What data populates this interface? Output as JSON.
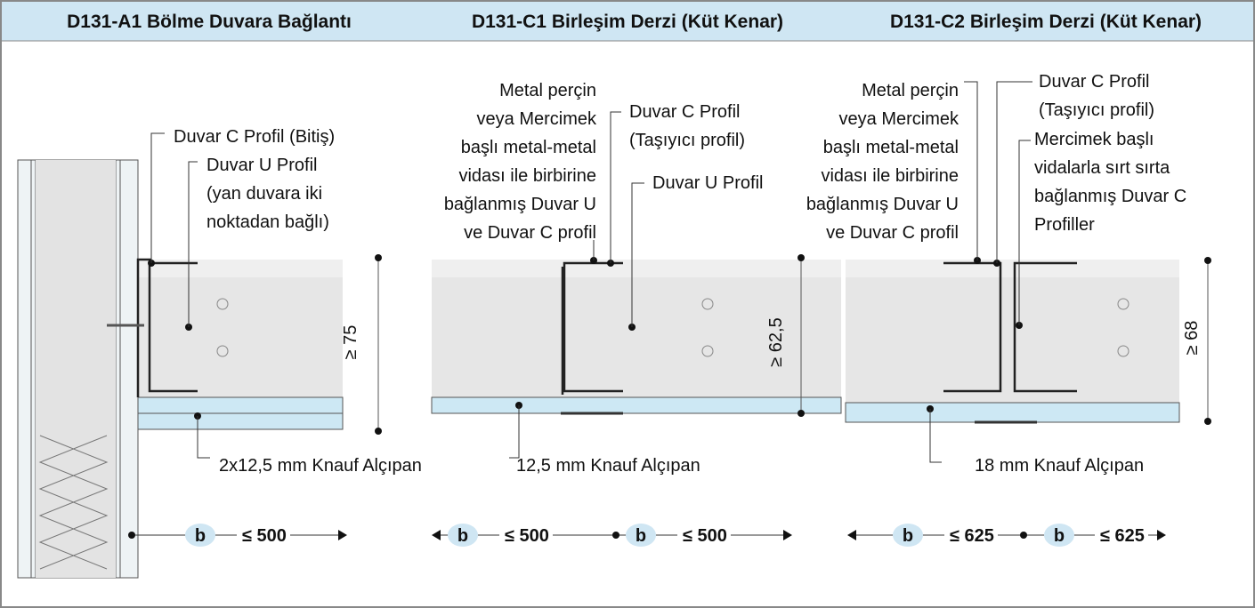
{
  "panels": [
    {
      "title": "D131-A1 Bölme Duvara Bağlantı",
      "callouts": [
        {
          "lines": [
            "Duvar C Profil (Bitiş)"
          ]
        },
        {
          "lines": [
            "Duvar U Profil",
            "(yan duvara iki",
            "noktadan bağlı)"
          ]
        },
        {
          "lines": [
            "2x12,5 mm Knauf Alçıpan"
          ]
        }
      ],
      "height_label": "≥ 75",
      "widths": [
        {
          "symbol": "b",
          "label": "≤ 500"
        }
      ]
    },
    {
      "title": "D131-C1 Birleşim Derzi (Küt Kenar)",
      "callouts": [
        {
          "lines": [
            "Metal perçin",
            "veya Mercimek",
            "başlı metal-metal",
            "vidası ile birbirine",
            "bağlanmış Duvar U",
            "ve Duvar C profil"
          ]
        },
        {
          "lines": [
            "Duvar C Profil",
            "(Taşıyıcı profil)"
          ]
        },
        {
          "lines": [
            "Duvar U Profil"
          ]
        },
        {
          "lines": [
            "12,5 mm Knauf Alçıpan"
          ]
        }
      ],
      "height_label": "≥ 62,5",
      "widths": [
        {
          "symbol": "b",
          "label": "≤ 500"
        },
        {
          "symbol": "b",
          "label": "≤ 500"
        }
      ]
    },
    {
      "title": "D131-C2 Birleşim Derzi (Küt Kenar)",
      "callouts": [
        {
          "lines": [
            "Metal perçin",
            "veya Mercimek",
            "başlı metal-metal",
            "vidası ile birbirine",
            "bağlanmış Duvar U",
            "ve Duvar C profil"
          ]
        },
        {
          "lines": [
            "Duvar C Profil",
            "(Taşıyıcı profil)"
          ]
        },
        {
          "lines": [
            "Mercimek başlı",
            "vidalarla sırt sırta",
            "bağlanmış Duvar C",
            "Profiller"
          ]
        },
        {
          "lines": [
            "18 mm Knauf Alçıpan"
          ]
        }
      ],
      "height_label": "≥ 68",
      "widths": [
        {
          "symbol": "b",
          "label": "≤ 625"
        },
        {
          "symbol": "b",
          "label": "≤ 625"
        }
      ]
    }
  ]
}
